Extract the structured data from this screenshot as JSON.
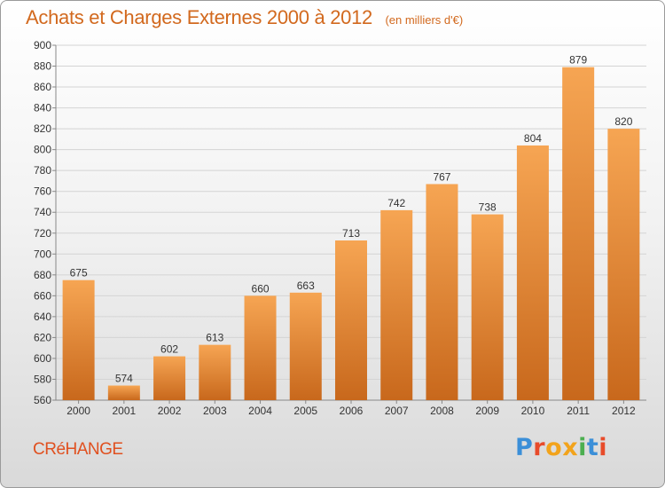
{
  "title": {
    "main": "Achats et Charges Externes 2000 à 2012",
    "unit": "(en milliers d'€)"
  },
  "city": "CRéHANGE",
  "logo": {
    "text": "Proxiti",
    "letter_colors": [
      "#3b8fd8",
      "#e84b2a",
      "#f2a31b",
      "#f2a31b",
      "#4caf50",
      "#3b8fd8",
      "#e84b2a"
    ]
  },
  "colors": {
    "bar_top": "#f6a553",
    "bar_bottom": "#c8681c",
    "accent": "#e0501f",
    "grid": "#d4d4d4"
  },
  "chart_data": {
    "type": "bar",
    "title": "Achats et Charges Externes 2000 à 2012",
    "subtitle": "(en milliers d'€)",
    "xlabel": "",
    "ylabel": "",
    "categories": [
      "2000",
      "2001",
      "2002",
      "2003",
      "2004",
      "2005",
      "2006",
      "2007",
      "2008",
      "2009",
      "2010",
      "2011",
      "2012"
    ],
    "values": [
      675,
      574,
      602,
      613,
      660,
      663,
      713,
      742,
      767,
      738,
      804,
      879,
      820
    ],
    "ylim": [
      560,
      900
    ],
    "ytick_step": 20,
    "grid": true,
    "legend": "none"
  }
}
